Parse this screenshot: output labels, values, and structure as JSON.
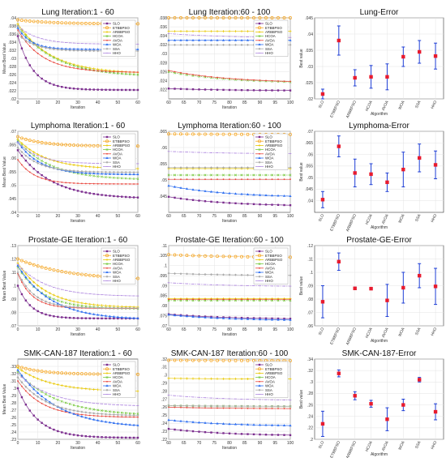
{
  "colors": {
    "SLO": "#7b2d8e",
    "ETBBPSO": "#f5a623",
    "ARBBPSO": "#e8c700",
    "HCOA": "#7ac943",
    "AVOA": "#e8433a",
    "WOA": "#2d6ef0",
    "SSA": "#a9a9a9",
    "HHO": "#b18ae0",
    "err_point": "#e81b2e",
    "err_bar": "#1f3fd6"
  },
  "chart_data": [
    {
      "type": "line",
      "title": "Lung  Iteration:1 - 60",
      "xlabel": "",
      "ylabel": "Mean Best Value",
      "xlim": [
        0,
        60
      ],
      "ylim": [
        0.02,
        0.04
      ],
      "xticks": [
        0,
        10,
        20,
        30,
        40,
        50,
        60
      ],
      "yticks": [
        0.02,
        0.022,
        0.024,
        0.026,
        0.028,
        0.03,
        0.032,
        0.034,
        0.036,
        0.038,
        0.04
      ],
      "legend": [
        "SLO",
        "ETBBPSO",
        "ARBBPSO",
        "HCOA",
        "AVOA",
        "WOA",
        "SSA",
        "HHO"
      ],
      "legend_position": "top-right",
      "series": [
        {
          "name": "SLO",
          "start": 0.0355,
          "end": 0.0222,
          "rate": 0.13
        },
        {
          "name": "ETBBPSO",
          "start": 0.0395,
          "end": 0.0385,
          "rate": 0.06
        },
        {
          "name": "ARBBPSO",
          "start": 0.0385,
          "end": 0.0262,
          "rate": 0.06
        },
        {
          "name": "HCOA",
          "start": 0.038,
          "end": 0.0255,
          "rate": 0.055
        },
        {
          "name": "AVOA",
          "start": 0.037,
          "end": 0.0265,
          "rate": 0.08
        },
        {
          "name": "WOA",
          "start": 0.0375,
          "end": 0.0322,
          "rate": 0.15
        },
        {
          "name": "SSA",
          "start": 0.036,
          "end": 0.0318,
          "rate": 0.12
        },
        {
          "name": "HHO",
          "start": 0.038,
          "end": 0.0335,
          "rate": 0.1
        }
      ]
    },
    {
      "type": "line",
      "title": "Lung  Iteration:60 - 100",
      "xlabel": "",
      "ylabel": "",
      "xlim": [
        60,
        100
      ],
      "ylim": [
        0.02,
        0.038
      ],
      "xticks": [
        60,
        65,
        70,
        75,
        80,
        85,
        90,
        95,
        100
      ],
      "yticks": [
        0.022,
        0.024,
        0.026,
        0.028,
        0.03,
        0.032,
        0.034,
        0.036,
        0.038
      ],
      "legend": [
        "SLO",
        "ETBBPSO",
        "ARBBPSO",
        "HCOA",
        "AVOA",
        "WOA",
        "SSA",
        "HHO"
      ],
      "legend_position": "top-right",
      "series": [
        {
          "name": "SLO",
          "start": 0.0223,
          "end": 0.0218,
          "rate": 0.05
        },
        {
          "name": "ETBBPSO",
          "start": 0.0385,
          "end": 0.0382,
          "rate": 0.05
        },
        {
          "name": "ARBBPSO",
          "start": 0.035,
          "end": 0.035,
          "rate": 0.05
        },
        {
          "name": "HCOA",
          "start": 0.026,
          "end": 0.0234,
          "rate": 0.05
        },
        {
          "name": "AVOA",
          "start": 0.0263,
          "end": 0.0235,
          "rate": 0.05
        },
        {
          "name": "WOA",
          "start": 0.033,
          "end": 0.033,
          "rate": 0.05
        },
        {
          "name": "SSA",
          "start": 0.032,
          "end": 0.032,
          "rate": 0.05
        },
        {
          "name": "HHO",
          "start": 0.0345,
          "end": 0.0335,
          "rate": 0.05
        }
      ]
    },
    {
      "type": "errorbar",
      "title": "Lung-Error",
      "ylabel": "Best value",
      "xlabel": "Algorithm",
      "ylim": [
        0.02,
        0.045
      ],
      "yticks": [
        0.02,
        0.025,
        0.03,
        0.035,
        0.04,
        0.045
      ],
      "categories": [
        "SLO",
        "ETBBPSO",
        "ARBBPSO",
        "HCOA",
        "AVOA",
        "WOA",
        "SSA",
        "HHO"
      ],
      "means": [
        0.0215,
        0.038,
        0.0265,
        0.0268,
        0.0268,
        0.033,
        0.0345,
        0.0332
      ],
      "errors": [
        0.0015,
        0.0045,
        0.0025,
        0.0035,
        0.004,
        0.003,
        0.0035,
        0.004
      ]
    },
    {
      "type": "line",
      "title": "Lymphoma  Iteration:1 - 60",
      "xlabel": "",
      "ylabel": "Mean Best Value",
      "xlim": [
        0,
        60
      ],
      "ylim": [
        0.04,
        0.07
      ],
      "xticks": [
        0,
        10,
        20,
        30,
        40,
        50,
        60
      ],
      "yticks": [
        0.04,
        0.045,
        0.05,
        0.055,
        0.06,
        0.065,
        0.07
      ],
      "legend": [
        "SLO",
        "ETBBPSO",
        "ARBBPSO",
        "HCOA",
        "AVOA",
        "WOA",
        "SSA",
        "HHO"
      ],
      "legend_position": "top-right",
      "series": [
        {
          "name": "SLO",
          "start": 0.063,
          "end": 0.045,
          "rate": 0.06
        },
        {
          "name": "ETBBPSO",
          "start": 0.068,
          "end": 0.0645,
          "rate": 0.08
        },
        {
          "name": "ARBBPSO",
          "start": 0.067,
          "end": 0.056,
          "rate": 0.07
        },
        {
          "name": "HCOA",
          "start": 0.0665,
          "end": 0.052,
          "rate": 0.06
        },
        {
          "name": "AVOA",
          "start": 0.0595,
          "end": 0.0505,
          "rate": 0.12
        },
        {
          "name": "WOA",
          "start": 0.066,
          "end": 0.054,
          "rate": 0.09
        },
        {
          "name": "SSA",
          "start": 0.064,
          "end": 0.0548,
          "rate": 0.1
        },
        {
          "name": "HHO",
          "start": 0.066,
          "end": 0.058,
          "rate": 0.1
        }
      ]
    },
    {
      "type": "line",
      "title": "Lymphoma  Iteration:60 - 100",
      "xlabel": "",
      "ylabel": "",
      "xlim": [
        60,
        100
      ],
      "ylim": [
        0.04,
        0.065
      ],
      "xticks": [
        60,
        65,
        70,
        75,
        80,
        85,
        90,
        95,
        100
      ],
      "yticks": [
        0.045,
        0.05,
        0.055,
        0.06,
        0.065
      ],
      "legend": [
        "SLO",
        "ETBBPSO",
        "ARBBPSO",
        "HCOA",
        "AVOA",
        "WOA",
        "SSA",
        "HHO"
      ],
      "legend_position": "top-right",
      "series": [
        {
          "name": "SLO",
          "start": 0.0448,
          "end": 0.0418,
          "rate": 0.05
        },
        {
          "name": "ETBBPSO",
          "start": 0.0642,
          "end": 0.064,
          "rate": 0.05
        },
        {
          "name": "ARBBPSO",
          "start": 0.0535,
          "end": 0.0535,
          "rate": 0.05
        },
        {
          "name": "HCOA",
          "start": 0.0515,
          "end": 0.0515,
          "rate": 0.05
        },
        {
          "name": "AVOA",
          "start": 0.0502,
          "end": 0.0502,
          "rate": 0.05
        },
        {
          "name": "WOA",
          "start": 0.0482,
          "end": 0.0445,
          "rate": 0.05
        },
        {
          "name": "SSA",
          "start": 0.0538,
          "end": 0.0538,
          "rate": 0.05
        },
        {
          "name": "HHO",
          "start": 0.0588,
          "end": 0.058,
          "rate": 0.05
        }
      ]
    },
    {
      "type": "errorbar",
      "title": "Lymphoma-Error",
      "ylabel": "Best value",
      "xlabel": "Algorithm",
      "ylim": [
        0.035,
        0.07
      ],
      "yticks": [
        0.04,
        0.045,
        0.05,
        0.055,
        0.06,
        0.065,
        0.07
      ],
      "categories": [
        "SLO",
        "ETBBPSO",
        "ARBBPSO",
        "HCOA",
        "AVOA",
        "WOA",
        "SSA",
        "HHO"
      ],
      "means": [
        0.0405,
        0.0635,
        0.052,
        0.0515,
        0.048,
        0.0535,
        0.0585,
        0.0555
      ],
      "errors": [
        0.0035,
        0.0045,
        0.006,
        0.0045,
        0.004,
        0.0075,
        0.006,
        0.006
      ]
    },
    {
      "type": "line",
      "title": "Prostate-GE  Iteration:1 - 60",
      "xlabel": "",
      "ylabel": "Mean Best Value",
      "xlim": [
        0,
        60
      ],
      "ylim": [
        0.07,
        0.13
      ],
      "xticks": [
        0,
        10,
        20,
        30,
        40,
        50,
        60
      ],
      "yticks": [
        0.07,
        0.08,
        0.09,
        0.1,
        0.11,
        0.12,
        0.13
      ],
      "legend": [
        "SLO",
        "ETBBPSO",
        "ARBBPSO",
        "HCOA",
        "AVOA",
        "WOA",
        "SSA",
        "HHO"
      ],
      "legend_position": "top-right",
      "series": [
        {
          "name": "SLO",
          "start": 0.1,
          "end": 0.0755,
          "rate": 0.15
        },
        {
          "name": "ETBBPSO",
          "start": 0.12,
          "end": 0.104,
          "rate": 0.04
        },
        {
          "name": "ARBBPSO",
          "start": 0.117,
          "end": 0.0835,
          "rate": 0.07
        },
        {
          "name": "HCOA",
          "start": 0.114,
          "end": 0.0826,
          "rate": 0.08
        },
        {
          "name": "AVOA",
          "start": 0.109,
          "end": 0.083,
          "rate": 0.14
        },
        {
          "name": "WOA",
          "start": 0.115,
          "end": 0.0745,
          "rate": 0.06
        },
        {
          "name": "SSA",
          "start": 0.11,
          "end": 0.0832,
          "rate": 0.12
        },
        {
          "name": "HHO",
          "start": 0.116,
          "end": 0.092,
          "rate": 0.07
        }
      ]
    },
    {
      "type": "line",
      "title": "Prostate-GE  Iteration:60 - 100",
      "xlabel": "",
      "ylabel": "",
      "xlim": [
        60,
        100
      ],
      "ylim": [
        0.07,
        0.11
      ],
      "xticks": [
        60,
        65,
        70,
        75,
        80,
        85,
        90,
        95,
        100
      ],
      "yticks": [
        0.07,
        0.075,
        0.08,
        0.085,
        0.09,
        0.095,
        0.1,
        0.105,
        0.11
      ],
      "legend": [
        "SLO",
        "ETBBPSO",
        "ARBBPSO",
        "HCOA",
        "AVOA",
        "WOA",
        "SSA",
        "HHO"
      ],
      "legend_position": "top-right",
      "series": [
        {
          "name": "SLO",
          "start": 0.0758,
          "end": 0.0732,
          "rate": 0.05
        },
        {
          "name": "ETBBPSO",
          "start": 0.1055,
          "end": 0.104,
          "rate": 0.05
        },
        {
          "name": "ARBBPSO",
          "start": 0.0835,
          "end": 0.0835,
          "rate": 0.05
        },
        {
          "name": "HCOA",
          "start": 0.0826,
          "end": 0.0826,
          "rate": 0.05
        },
        {
          "name": "AVOA",
          "start": 0.0832,
          "end": 0.0832,
          "rate": 0.05
        },
        {
          "name": "WOA",
          "start": 0.0755,
          "end": 0.0725,
          "rate": 0.05
        },
        {
          "name": "SSA",
          "start": 0.0962,
          "end": 0.095,
          "rate": 0.05
        },
        {
          "name": "HHO",
          "start": 0.0915,
          "end": 0.0895,
          "rate": 0.05
        }
      ]
    },
    {
      "type": "errorbar",
      "title": "Prostate-GE-Error",
      "ylabel": "Best value",
      "xlabel": "Algorithm",
      "ylim": [
        0.06,
        0.12
      ],
      "yticks": [
        0.06,
        0.07,
        0.08,
        0.09,
        0.1,
        0.11,
        0.12
      ],
      "categories": [
        "SLO",
        "ETBBPSO",
        "ARBBPSO",
        "HCOA",
        "AVOA",
        "WOA",
        "SSA",
        "HHO"
      ],
      "means": [
        0.078,
        0.108,
        0.088,
        0.0878,
        0.079,
        0.0885,
        0.0975,
        0.0895
      ],
      "errors": [
        0.012,
        0.0065,
        0.001,
        0.0005,
        0.012,
        0.0115,
        0.009,
        0.0135
      ]
    },
    {
      "type": "line",
      "title": "SMK-CAN-187  Iteration:1 - 60",
      "xlabel": "Iteration",
      "ylabel": "Mean Best Value",
      "xlim": [
        0,
        60
      ],
      "ylim": [
        0.23,
        0.34
      ],
      "xticks": [
        0,
        10,
        20,
        30,
        40,
        50,
        60
      ],
      "yticks": [
        0.23,
        0.24,
        0.25,
        0.26,
        0.27,
        0.28,
        0.29,
        0.3,
        0.31,
        0.32,
        0.33
      ],
      "legend": [
        "SLO",
        "ETBBPSO",
        "ARBBPSO",
        "HCOA",
        "AVOA",
        "WOA",
        "SSA",
        "HHO"
      ],
      "legend_position": "top-right",
      "series": [
        {
          "name": "SLO",
          "start": 0.3,
          "end": 0.232,
          "rate": 0.1
        },
        {
          "name": "ETBBPSO",
          "start": 0.33,
          "end": 0.319,
          "rate": 0.08
        },
        {
          "name": "ARBBPSO",
          "start": 0.328,
          "end": 0.295,
          "rate": 0.06
        },
        {
          "name": "HCOA",
          "start": 0.322,
          "end": 0.262,
          "rate": 0.05
        },
        {
          "name": "AVOA",
          "start": 0.31,
          "end": 0.26,
          "rate": 0.08
        },
        {
          "name": "WOA",
          "start": 0.325,
          "end": 0.245,
          "rate": 0.05
        },
        {
          "name": "SSA",
          "start": 0.315,
          "end": 0.262,
          "rate": 0.07
        },
        {
          "name": "HHO",
          "start": 0.32,
          "end": 0.275,
          "rate": 0.06
        }
      ]
    },
    {
      "type": "line",
      "title": "SMK-CAN-187  Iteration:60 - 100",
      "xlabel": "Iteration",
      "ylabel": "",
      "xlim": [
        60,
        100
      ],
      "ylim": [
        0.22,
        0.32
      ],
      "xticks": [
        60,
        65,
        70,
        75,
        80,
        85,
        90,
        95,
        100
      ],
      "yticks": [
        0.22,
        0.23,
        0.24,
        0.25,
        0.26,
        0.27,
        0.28,
        0.29,
        0.3,
        0.31,
        0.32
      ],
      "legend": [
        "SLO",
        "ETBBPSO",
        "ARBBPSO",
        "HCOA",
        "AVOA",
        "WOA",
        "SSA",
        "HHO"
      ],
      "legend_position": "top-right",
      "series": [
        {
          "name": "SLO",
          "start": 0.233,
          "end": 0.224,
          "rate": 0.05
        },
        {
          "name": "ETBBPSO",
          "start": 0.3185,
          "end": 0.318,
          "rate": 0.05
        },
        {
          "name": "ARBBPSO",
          "start": 0.296,
          "end": 0.295,
          "rate": 0.05
        },
        {
          "name": "HCOA",
          "start": 0.262,
          "end": 0.261,
          "rate": 0.05
        },
        {
          "name": "AVOA",
          "start": 0.26,
          "end": 0.258,
          "rate": 0.05
        },
        {
          "name": "WOA",
          "start": 0.244,
          "end": 0.236,
          "rate": 0.05
        },
        {
          "name": "SSA",
          "start": 0.262,
          "end": 0.261,
          "rate": 0.05
        },
        {
          "name": "HHO",
          "start": 0.275,
          "end": 0.268,
          "rate": 0.05
        }
      ]
    },
    {
      "type": "errorbar",
      "title": "SMK-CAN-187-Error",
      "ylabel": "Best value",
      "xlabel": "Algorithm",
      "ylim": [
        0.2,
        0.34
      ],
      "yticks": [
        0.2,
        0.22,
        0.24,
        0.26,
        0.28,
        0.3,
        0.32,
        0.34
      ],
      "categories": [
        "SLO",
        "ETBBPSO",
        "ARBBPSO",
        "HCOA",
        "AVOA",
        "WOA",
        "SSA",
        "HHO"
      ],
      "means": [
        0.227,
        0.315,
        0.276,
        0.262,
        0.235,
        0.26,
        0.304,
        0.248
      ],
      "errors": [
        0.022,
        0.006,
        0.007,
        0.006,
        0.02,
        0.01,
        0.004,
        0.014
      ]
    }
  ]
}
